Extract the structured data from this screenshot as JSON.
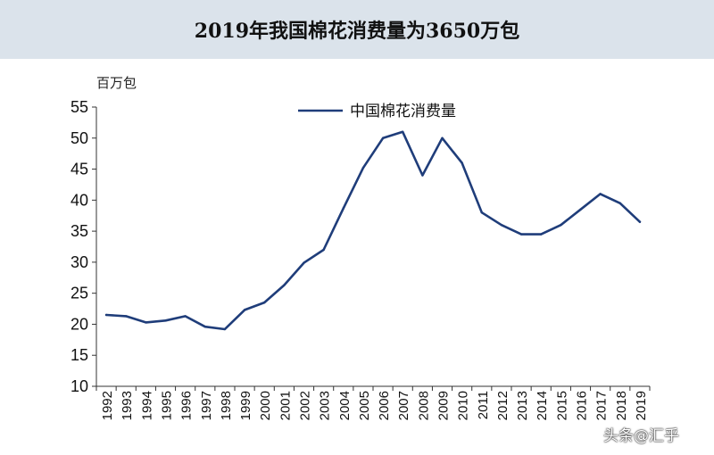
{
  "page": {
    "title": "2019年我国棉花消费量为3650万包",
    "watermark": "头条@汇乎"
  },
  "chart_data": {
    "type": "line",
    "title": "2019年我国棉花消费量为3650万包",
    "ylabel": "百万包",
    "xlabel": "",
    "ylim": [
      10,
      55
    ],
    "yticks": [
      10,
      15,
      20,
      25,
      30,
      35,
      40,
      45,
      50,
      55
    ],
    "grid": false,
    "legend": "top-center",
    "categories": [
      "1992",
      "1993",
      "1994",
      "1995",
      "1996",
      "1997",
      "1998",
      "1999",
      "2000",
      "2001",
      "2002",
      "2003",
      "2004",
      "2005",
      "2006",
      "2007",
      "2008",
      "2009",
      "2010",
      "2011",
      "2012",
      "2013",
      "2014",
      "2015",
      "2016",
      "2017",
      "2018",
      "2019"
    ],
    "series": [
      {
        "name": "中国棉花消费量",
        "color": "#1f3d7a",
        "values": [
          21.5,
          21.3,
          20.3,
          20.6,
          21.3,
          19.6,
          19.2,
          22.3,
          23.5,
          26.3,
          29.9,
          32.0,
          38.7,
          45.2,
          50.0,
          51.0,
          44.0,
          50.0,
          46.0,
          38.0,
          36.0,
          34.5,
          34.5,
          36.0,
          38.5,
          41.0,
          39.5,
          36.5
        ]
      }
    ]
  }
}
